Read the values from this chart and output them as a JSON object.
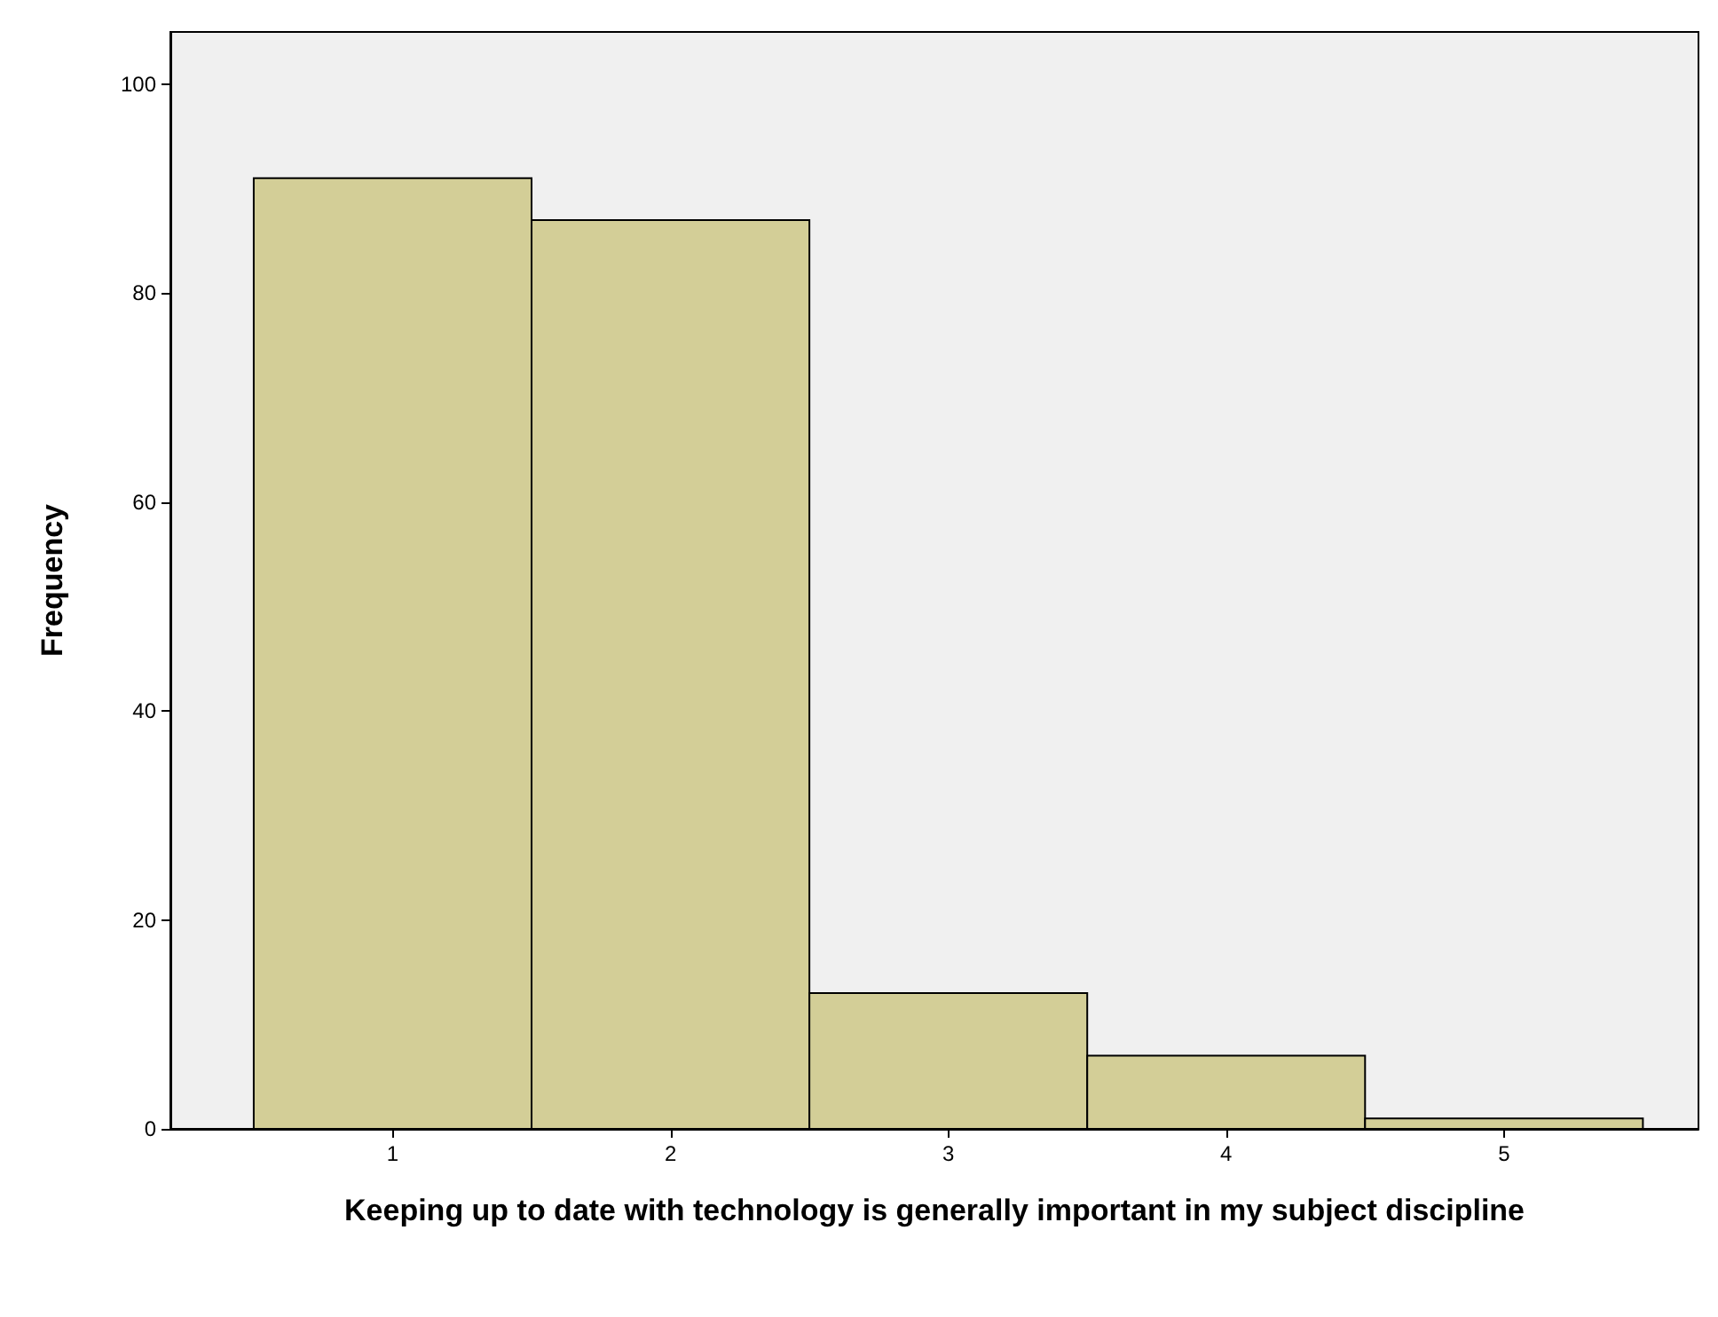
{
  "chart_data": {
    "type": "histogram",
    "xlabel": "Keeping up to date with technology is generally important in my subject discipline",
    "ylabel": "Frequency",
    "bins": [
      0.5,
      1.5,
      2.5,
      3.5,
      4.5,
      5.5
    ],
    "values": [
      91,
      87,
      13,
      7,
      1
    ],
    "color": "#d3ce97",
    "xlim": [
      0.2,
      5.7
    ],
    "xticks": [
      1,
      2,
      3,
      4,
      5
    ],
    "ylim": [
      0,
      105
    ],
    "yticks": [
      0,
      20,
      40,
      60,
      80,
      100
    ]
  }
}
